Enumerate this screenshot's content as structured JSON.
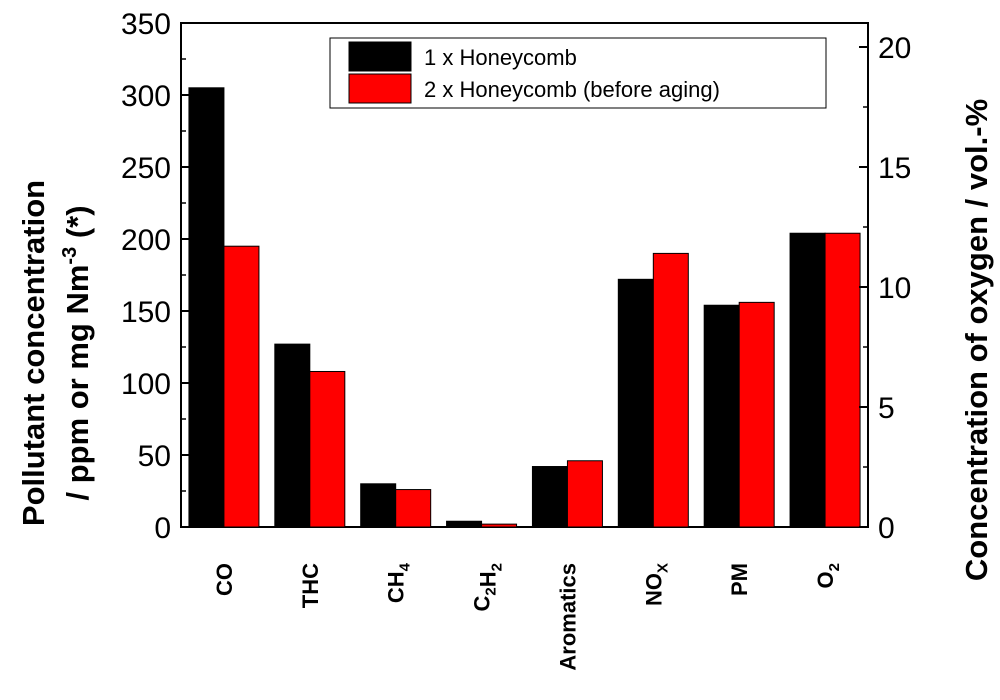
{
  "chart_data": {
    "type": "bar",
    "categories": [
      {
        "main": "CO",
        "sub": "",
        "main2": "",
        "sub2": ""
      },
      {
        "main": "THC",
        "sub": "",
        "main2": "",
        "sub2": ""
      },
      {
        "main": "CH",
        "sub": "4",
        "main2": "",
        "sub2": ""
      },
      {
        "main": "C",
        "sub": "2",
        "main2": "H",
        "sub2": "2"
      },
      {
        "main": "Aromatics",
        "sub": "",
        "main2": "",
        "sub2": ""
      },
      {
        "main": "NO",
        "sub": "X",
        "main2": "",
        "sub2": ""
      },
      {
        "main": "PM",
        "sub": "",
        "main2": "",
        "sub2": ""
      },
      {
        "main": "O",
        "sub": "2",
        "main2": "",
        "sub2": ""
      }
    ],
    "series": [
      {
        "name": "1 x Honeycomb",
        "color": "#000000",
        "values": [
          305,
          127,
          30,
          4,
          42,
          172,
          154,
          204
        ]
      },
      {
        "name": "2 x Honeycomb (before aging)",
        "color": "#ff0000",
        "values": [
          195,
          108,
          26,
          2,
          46,
          190,
          156,
          204
        ]
      }
    ],
    "y_left": {
      "min": 0,
      "max": 350,
      "ticks": [
        "0",
        "50",
        "100",
        "150",
        "200",
        "250",
        "300",
        "350"
      ],
      "title_line1": "Pollutant concentration",
      "title_line2_a": "/ ppm or mg Nm",
      "title_line2_sup": "-3",
      "title_line2_b": " (*)"
    },
    "y_right": {
      "min": 0,
      "max": 21,
      "ticks": [
        "0",
        "5",
        "10",
        "15",
        "20"
      ],
      "title": "Concentration of oxygen / vol.-%"
    },
    "legend_position": "top-right"
  }
}
